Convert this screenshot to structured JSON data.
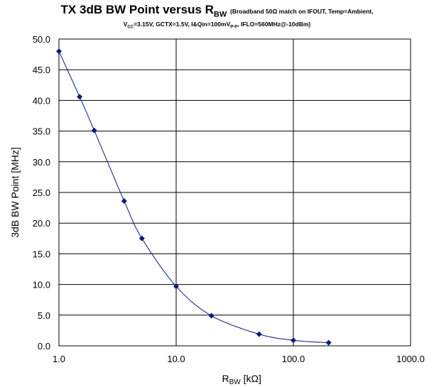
{
  "chart_data": {
    "type": "scatter",
    "title_main": "TX 3dB BW Point versus R",
    "title_main_sub": "BW",
    "title_note": "(Broadband 50Ω match on IFOUT, Temp=Ambient,",
    "title_line2_parts": {
      "vcc": "V",
      "vcc_sub": "CC",
      "mid": "=3.15V, GCTX=1.5V, I&Qin=100mV",
      "vpp_sub": "P-P",
      "end": ", IFLO=560MHz@-10dBm)"
    },
    "xlabel": "R",
    "xlabel_sub": "BW",
    "xlabel_unit": " [kΩ]",
    "ylabel": "3dB BW Point [MHz]",
    "x_scale": "log",
    "xlim": [
      1,
      1000
    ],
    "ylim": [
      0,
      50
    ],
    "x_ticks": [
      "1.0",
      "10.0",
      "100.0",
      "1000.0"
    ],
    "y_ticks": [
      "0.0",
      "5.0",
      "10.0",
      "15.0",
      "20.0",
      "25.0",
      "30.0",
      "35.0",
      "40.0",
      "45.0",
      "50.0"
    ],
    "grid": true,
    "legend": "none",
    "series": [
      {
        "x": [
          1,
          1.5,
          2,
          3.6,
          5.1,
          10,
          20,
          51,
          100,
          200
        ],
        "y": [
          48.0,
          40.6,
          35.1,
          23.6,
          17.5,
          9.7,
          4.9,
          1.9,
          0.9,
          0.5
        ],
        "color": "#0a1a7a"
      }
    ]
  }
}
